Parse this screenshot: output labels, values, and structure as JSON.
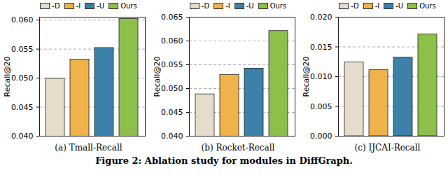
{
  "chart_data": [
    {
      "type": "bar",
      "title": "(a) Tmall-Recall",
      "y_label": "Recall@20",
      "categories": [
        "-D",
        "-I",
        "-U",
        "Ours"
      ],
      "values": [
        0.0499,
        0.0532,
        0.0552,
        0.0602
      ],
      "colors": [
        "#e6dccb",
        "#f0b24a",
        "#3b81a9",
        "#8dbf4b"
      ],
      "ylim": [
        0.04,
        0.0605
      ],
      "yticks": [
        {
          "value": 0.04,
          "label": "0.040"
        },
        {
          "value": 0.045,
          "label": "0.045"
        },
        {
          "value": 0.05,
          "label": "0.050"
        },
        {
          "value": 0.055,
          "label": "0.055"
        },
        {
          "value": 0.06,
          "label": "0.060"
        }
      ],
      "grid": true,
      "legend": "top",
      "tick_labels": "y"
    },
    {
      "type": "bar",
      "title": "(b) Rocket-Recall",
      "y_label": "Recall@20",
      "categories": [
        "-D",
        "-I",
        "-U",
        "Ours"
      ],
      "values": [
        0.0488,
        0.0529,
        0.0542,
        0.0621
      ],
      "colors": [
        "#e6dccb",
        "#f0b24a",
        "#3b81a9",
        "#8dbf4b"
      ],
      "ylim": [
        0.04,
        0.065
      ],
      "yticks": [
        {
          "value": 0.04,
          "label": "0.040"
        },
        {
          "value": 0.045,
          "label": "0.045"
        },
        {
          "value": 0.05,
          "label": "0.050"
        },
        {
          "value": 0.055,
          "label": "0.055"
        },
        {
          "value": 0.06,
          "label": "0.060"
        },
        {
          "value": 0.065,
          "label": "0.065"
        }
      ],
      "grid": true,
      "legend": "top",
      "tick_labels": "y"
    },
    {
      "type": "bar",
      "title": "(c) IJCAI-Recall",
      "y_label": "Recall@20",
      "categories": [
        "-D",
        "-I",
        "-U",
        "Ours"
      ],
      "values": [
        0.0124,
        0.0111,
        0.0132,
        0.0171
      ],
      "colors": [
        "#e6dccb",
        "#f0b24a",
        "#3b81a9",
        "#8dbf4b"
      ],
      "ylim": [
        0,
        0.02
      ],
      "yticks": [
        {
          "value": 0,
          "label": "0.000"
        },
        {
          "value": 0.005,
          "label": "0.005"
        },
        {
          "value": 0.01,
          "label": "0.010"
        },
        {
          "value": 0.015,
          "label": "0.015"
        },
        {
          "value": 0.02,
          "label": "0.020"
        }
      ],
      "grid": true,
      "legend": "top",
      "tick_labels": "y"
    }
  ],
  "caption": "Figure 2: Ablation study for modules in DiffGraph."
}
